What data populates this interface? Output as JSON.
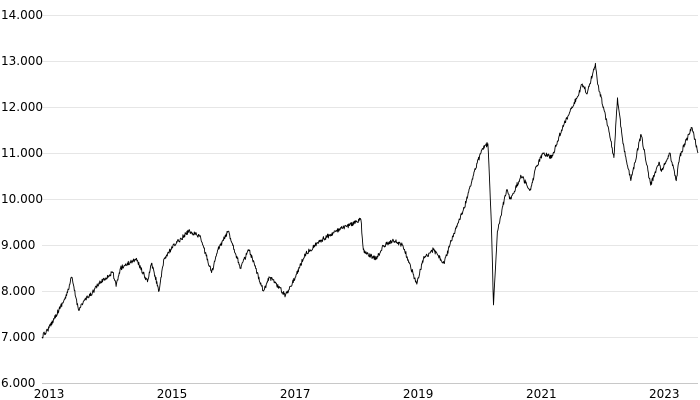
{
  "chart_data": {
    "type": "line",
    "title": "",
    "xlabel": "",
    "ylabel": "",
    "ylim": [
      6.0,
      14.0
    ],
    "xlim": [
      "2012-11-20",
      "2023-07-20"
    ],
    "grid": true,
    "legend": "none",
    "colors": {
      "line": "#000000",
      "grid": "#e6e6e6",
      "text": "#000000"
    },
    "y_ticks": [
      {
        "value": 14.0,
        "label": "14.000"
      },
      {
        "value": 13.0,
        "label": "13.000"
      },
      {
        "value": 12.0,
        "label": "12.000"
      },
      {
        "value": 11.0,
        "label": "11.000"
      },
      {
        "value": 10.0,
        "label": "10.000"
      },
      {
        "value": 9.0,
        "label": "9.000"
      },
      {
        "value": 8.0,
        "label": "8.000"
      },
      {
        "value": 7.0,
        "label": "7.000"
      },
      {
        "value": 6.0,
        "label": "6.000"
      }
    ],
    "x_ticks": [
      {
        "value": "2013-01-01",
        "label": "2013"
      },
      {
        "value": "2015-01-01",
        "label": "2015"
      },
      {
        "value": "2017-01-01",
        "label": "2017"
      },
      {
        "value": "2019-01-01",
        "label": "2019"
      },
      {
        "value": "2021-01-01",
        "label": "2021"
      },
      {
        "value": "2023-01-01",
        "label": "2023"
      }
    ],
    "series": [
      {
        "x": [
          "2012-11-20",
          "2013-01-01",
          "2013-03-01",
          "2013-04-15",
          "2013-05-15",
          "2013-06-24",
          "2013-08-01",
          "2013-09-01",
          "2013-11-01",
          "2014-01-15",
          "2014-02-03",
          "2014-03-01",
          "2014-06-01",
          "2014-08-08",
          "2014-09-01",
          "2014-10-16",
          "2014-11-15",
          "2015-01-15",
          "2015-04-10",
          "2015-06-15",
          "2015-08-24",
          "2015-10-01",
          "2015-12-01",
          "2016-02-11",
          "2016-04-01",
          "2016-06-27",
          "2016-08-01",
          "2016-09-01",
          "2016-11-04",
          "2017-01-01",
          "2017-03-01",
          "2017-06-01",
          "2017-09-01",
          "2017-11-01",
          "2018-01-26",
          "2018-02-09",
          "2018-03-01",
          "2018-05-01",
          "2018-06-01",
          "2018-08-01",
          "2018-10-01",
          "2018-12-24",
          "2019-02-01",
          "2019-04-01",
          "2019-06-03",
          "2019-07-26",
          "2019-10-01",
          "2019-12-01",
          "2020-01-17",
          "2020-02-19",
          "2020-03-10",
          "2020-03-23",
          "2020-04-15",
          "2020-06-08",
          "2020-07-01",
          "2020-09-03",
          "2020-10-30",
          "2020-12-01",
          "2021-01-15",
          "2021-03-04",
          "2021-05-01",
          "2021-07-01",
          "2021-08-01",
          "2021-09-01",
          "2021-10-01",
          "2021-11-18",
          "2021-12-01",
          "2022-01-05",
          "2022-02-15",
          "2022-03-08",
          "2022-03-29",
          "2022-05-01",
          "2022-06-16",
          "2022-08-16",
          "2022-10-12",
          "2022-11-30",
          "2022-12-15",
          "2023-02-02",
          "2023-03-13",
          "2023-04-01",
          "2023-05-01",
          "2023-06-15",
          "2023-07-20"
        ],
        "y": [
          7.0,
          7.2,
          7.6,
          7.9,
          8.3,
          7.6,
          7.8,
          7.9,
          8.2,
          8.4,
          8.1,
          8.5,
          8.7,
          8.2,
          8.6,
          8.0,
          8.7,
          9.0,
          9.3,
          9.2,
          8.4,
          8.9,
          9.3,
          8.5,
          8.9,
          8.0,
          8.3,
          8.2,
          7.9,
          8.3,
          8.8,
          9.1,
          9.3,
          9.4,
          9.55,
          8.9,
          8.8,
          8.7,
          8.95,
          9.1,
          9.0,
          8.15,
          8.7,
          8.9,
          8.6,
          9.2,
          9.8,
          10.6,
          11.1,
          11.2,
          9.5,
          7.7,
          9.3,
          10.2,
          10.0,
          10.5,
          10.2,
          10.7,
          11.0,
          10.9,
          11.5,
          12.0,
          12.2,
          12.5,
          12.3,
          12.95,
          12.5,
          12.0,
          11.3,
          10.9,
          12.2,
          11.2,
          10.4,
          11.4,
          10.3,
          10.8,
          10.6,
          11.0,
          10.4,
          10.9,
          11.2,
          11.55,
          11.0
        ]
      }
    ]
  }
}
